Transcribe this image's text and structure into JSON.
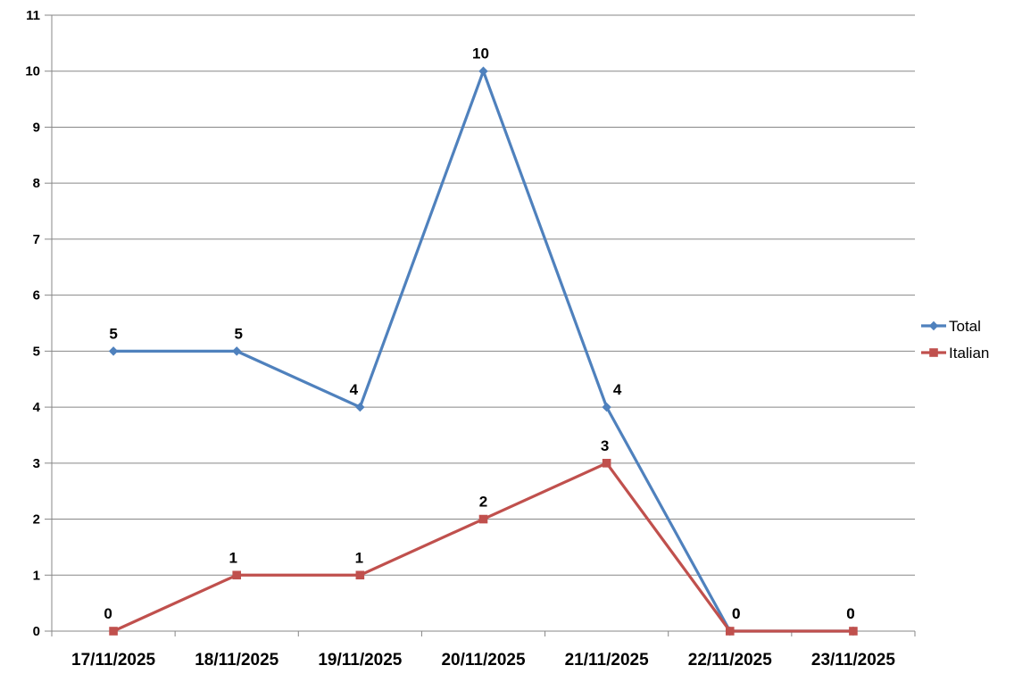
{
  "chart_data": {
    "type": "line",
    "title": "",
    "xlabel": "",
    "ylabel": "",
    "x": [
      "17/11/2025",
      "18/11/2025",
      "19/11/2025",
      "20/11/2025",
      "21/11/2025",
      "22/11/2025",
      "23/11/2025"
    ],
    "series": [
      {
        "name": "Total",
        "color": "#4F81BD",
        "marker": "diamond",
        "values": [
          5,
          5,
          4,
          10,
          4,
          0,
          0
        ],
        "data_labels": [
          "5",
          "5",
          "4",
          "10",
          "4",
          "0",
          "0"
        ],
        "label_dx": [
          0,
          2,
          -7,
          -3,
          12,
          7,
          -3
        ]
      },
      {
        "name": "Italian",
        "color": "#C0504D",
        "marker": "square",
        "values": [
          0,
          1,
          1,
          2,
          3,
          0,
          0
        ],
        "data_labels": [
          "0",
          "1",
          "1",
          "2",
          "3",
          "0",
          "0"
        ],
        "label_dx": [
          -6,
          -4,
          -1,
          0,
          -2,
          7,
          -3
        ]
      }
    ],
    "ylim": [
      0,
      11
    ],
    "ytick_step": 1,
    "yticks": [
      "0",
      "1",
      "2",
      "3",
      "4",
      "5",
      "6",
      "7",
      "8",
      "9",
      "10",
      "11"
    ],
    "grid": "horizontal",
    "gridline_color": "#878787",
    "axis_color": "#878787",
    "text_color": "#000000",
    "background": "#FFFFFF",
    "legend_position": "right",
    "legend_items": [
      "Total",
      "Italian"
    ]
  }
}
